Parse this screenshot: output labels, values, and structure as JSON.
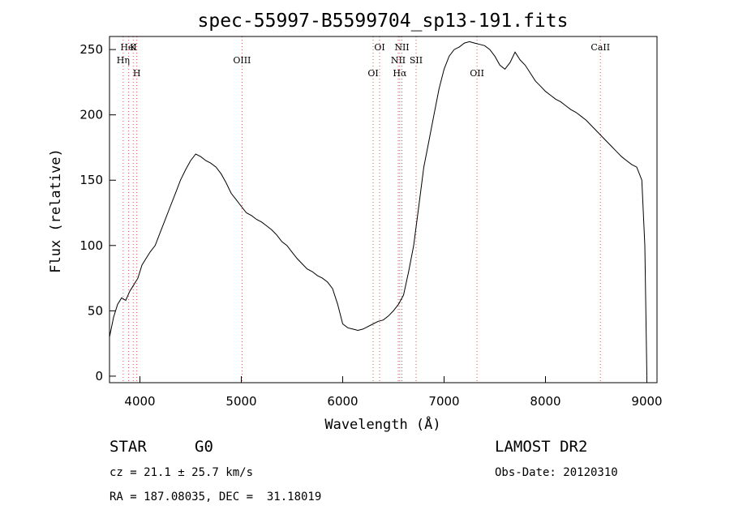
{
  "chart_data": {
    "type": "line",
    "title": "spec-55997-B5599704_sp13-191.fits",
    "xlabel": "Wavelength (Å)",
    "ylabel": "Flux (relative)",
    "xlim": [
      3700,
      9100
    ],
    "ylim": [
      -5,
      260
    ],
    "xticks": [
      4000,
      5000,
      6000,
      7000,
      8000,
      9000
    ],
    "yticks": [
      0,
      50,
      100,
      150,
      200,
      250
    ],
    "grid": false,
    "line_color": "#000000",
    "marker_color": "#d9534f",
    "series": [
      {
        "x": [
          3700,
          3740,
          3780,
          3820,
          3860,
          3900,
          3940,
          3980,
          4020,
          4060,
          4100,
          4150,
          4200,
          4250,
          4300,
          4350,
          4400,
          4450,
          4500,
          4550,
          4600,
          4650,
          4700,
          4750,
          4800,
          4850,
          4900,
          4950,
          5000,
          5050,
          5100,
          5150,
          5200,
          5250,
          5300,
          5350,
          5400,
          5450,
          5500,
          5550,
          5600,
          5650,
          5700,
          5750,
          5800,
          5850,
          5900,
          5950,
          6000,
          6050,
          6100,
          6150,
          6200,
          6250,
          6300,
          6350,
          6400,
          6450,
          6500,
          6550,
          6600,
          6650,
          6700,
          6750,
          6800,
          6850,
          6900,
          6950,
          7000,
          7050,
          7100,
          7150,
          7200,
          7250,
          7300,
          7350,
          7400,
          7450,
          7500,
          7550,
          7600,
          7650,
          7700,
          7750,
          7800,
          7850,
          7900,
          7950,
          8000,
          8050,
          8100,
          8150,
          8200,
          8250,
          8300,
          8350,
          8400,
          8450,
          8500,
          8550,
          8600,
          8650,
          8700,
          8750,
          8800,
          8850,
          8900,
          8950,
          8980,
          9000
        ],
        "y": [
          30,
          45,
          55,
          60,
          58,
          65,
          70,
          75,
          85,
          90,
          95,
          100,
          110,
          120,
          130,
          140,
          150,
          158,
          165,
          170,
          168,
          165,
          163,
          160,
          155,
          148,
          140,
          135,
          130,
          125,
          123,
          120,
          118,
          115,
          112,
          108,
          103,
          100,
          95,
          90,
          86,
          82,
          80,
          77,
          75,
          72,
          67,
          55,
          40,
          37,
          36,
          35,
          36,
          38,
          40,
          42,
          43,
          46,
          50,
          55,
          62,
          80,
          100,
          130,
          160,
          180,
          200,
          220,
          235,
          245,
          250,
          252,
          255,
          256,
          255,
          254,
          253,
          250,
          245,
          238,
          235,
          240,
          248,
          242,
          238,
          232,
          226,
          222,
          218,
          215,
          212,
          210,
          207,
          204,
          202,
          199,
          196,
          192,
          188,
          184,
          180,
          176,
          172,
          168,
          165,
          162,
          160,
          150,
          100,
          0
        ]
      }
    ],
    "line_markers": [
      {
        "name": "HeI",
        "x": 3889
      },
      {
        "name": "Hη",
        "x": 3835
      },
      {
        "name": "H",
        "x": 3969
      },
      {
        "name": "K",
        "x": 3934
      },
      {
        "name": "OIII",
        "x": 5007
      },
      {
        "name": "OI",
        "x": 6300
      },
      {
        "name": "OI",
        "x": 6364
      },
      {
        "name": "NII",
        "x": 6548
      },
      {
        "name": "Hα",
        "x": 6563
      },
      {
        "name": "NII",
        "x": 6584
      },
      {
        "name": "SII",
        "x": 6724
      },
      {
        "name": "OII",
        "x": 7325
      },
      {
        "name": "CaII",
        "x": 8542
      }
    ]
  },
  "info": {
    "class": "STAR",
    "subclass": "G0",
    "survey": "LAMOST DR2",
    "cz": "cz = 21.1 ± 25.7 km/s",
    "obs_date": "Obs-Date: 20120310",
    "radec": "RA = 187.08035, DEC =  31.18019"
  }
}
